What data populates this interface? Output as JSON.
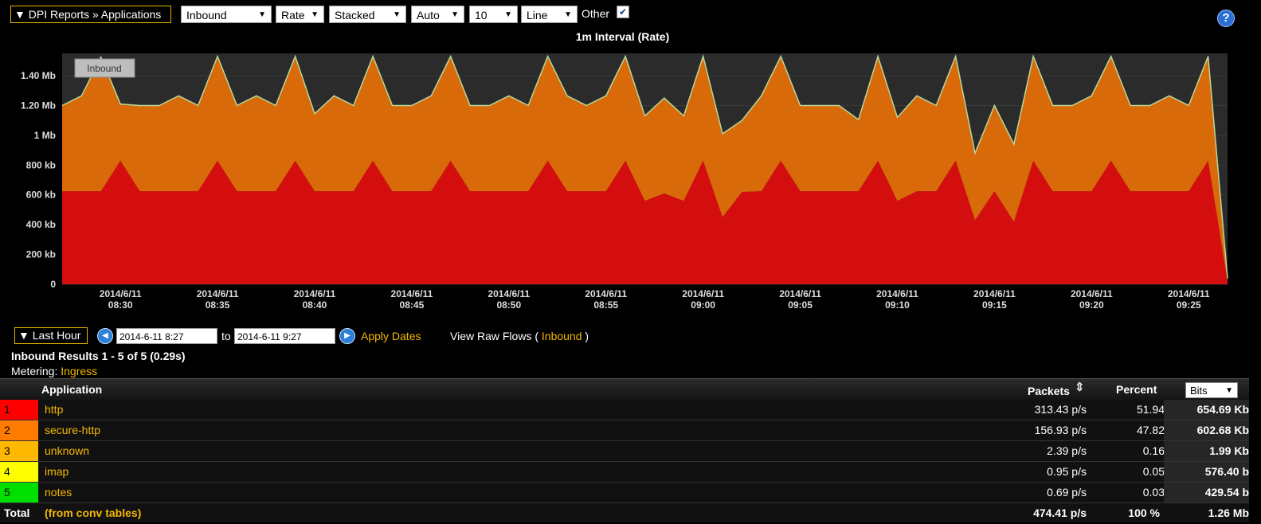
{
  "toolbar": {
    "breadcrumb": "▼ DPI Reports » Applications",
    "selects": [
      "Inbound",
      "Rate",
      "Stacked",
      "Auto",
      "10",
      "Line"
    ],
    "other_label": "Other",
    "other_checked": true,
    "help_label": "?"
  },
  "chart_title": "1m Interval (Rate)",
  "chart_data": {
    "type": "area",
    "stacked": true,
    "y_unit": "b",
    "ylim": [
      0,
      1550000
    ],
    "yticks": [
      0,
      200000,
      400000,
      600000,
      800000,
      1000000,
      1200000,
      1400000
    ],
    "ytick_labels": [
      "0",
      "200 kb",
      "400 kb",
      "600 kb",
      "800 kb",
      "1 Mb",
      "1.20 Mb",
      "1.40 Mb"
    ],
    "xlim": [
      "2014-06-11 08:27",
      "2014-06-11 09:27"
    ],
    "x_tick_labels": [
      [
        "2014/6/11",
        "08:30"
      ],
      [
        "2014/6/11",
        "08:35"
      ],
      [
        "2014/6/11",
        "08:40"
      ],
      [
        "2014/6/11",
        "08:45"
      ],
      [
        "2014/6/11",
        "08:50"
      ],
      [
        "2014/6/11",
        "08:55"
      ],
      [
        "2014/6/11",
        "09:00"
      ],
      [
        "2014/6/11",
        "09:05"
      ],
      [
        "2014/6/11",
        "09:10"
      ],
      [
        "2014/6/11",
        "09:15"
      ],
      [
        "2014/6/11",
        "09:20"
      ],
      [
        "2014/6/11",
        "09:25"
      ]
    ],
    "x": [
      "08:27",
      "08:28",
      "08:29",
      "08:30",
      "08:31",
      "08:32",
      "08:33",
      "08:34",
      "08:35",
      "08:36",
      "08:37",
      "08:38",
      "08:39",
      "08:40",
      "08:41",
      "08:42",
      "08:43",
      "08:44",
      "08:45",
      "08:46",
      "08:47",
      "08:48",
      "08:49",
      "08:50",
      "08:51",
      "08:52",
      "08:53",
      "08:54",
      "08:55",
      "08:56",
      "08:57",
      "08:58",
      "08:59",
      "09:00",
      "09:01",
      "09:02",
      "09:03",
      "09:04",
      "09:05",
      "09:06",
      "09:07",
      "09:08",
      "09:09",
      "09:10",
      "09:11",
      "09:12",
      "09:13",
      "09:14",
      "09:15",
      "09:16",
      "09:17",
      "09:18",
      "09:19",
      "09:20",
      "09:21",
      "09:22",
      "09:23",
      "09:24",
      "09:25",
      "09:26",
      "09:27"
    ],
    "series": [
      {
        "name": "Inbound",
        "color": "#d40e0e",
        "values": [
          625000,
          625000,
          625000,
          830000,
          625000,
          625000,
          625000,
          625000,
          830000,
          625000,
          625000,
          625000,
          830000,
          625000,
          625000,
          625000,
          830000,
          625000,
          625000,
          625000,
          830000,
          625000,
          625000,
          625000,
          625000,
          830000,
          625000,
          625000,
          625000,
          830000,
          560000,
          610000,
          560000,
          830000,
          450000,
          620000,
          625000,
          830000,
          625000,
          625000,
          625000,
          625000,
          830000,
          560000,
          625000,
          625000,
          830000,
          430000,
          625000,
          420000,
          830000,
          625000,
          625000,
          625000,
          830000,
          625000,
          625000,
          625000,
          625000,
          830000,
          20000
        ]
      },
      {
        "name": "secure-http",
        "color": "#d86a0a",
        "values": [
          575000,
          640000,
          900000,
          380000,
          575000,
          575000,
          640000,
          575000,
          700000,
          575000,
          640000,
          575000,
          700000,
          520000,
          640000,
          575000,
          700000,
          575000,
          575000,
          640000,
          700000,
          575000,
          575000,
          640000,
          575000,
          700000,
          640000,
          575000,
          640000,
          700000,
          570000,
          640000,
          570000,
          700000,
          560000,
          480000,
          640000,
          700000,
          575000,
          575000,
          575000,
          480000,
          700000,
          560000,
          640000,
          575000,
          700000,
          450000,
          575000,
          520000,
          700000,
          575000,
          575000,
          640000,
          700000,
          575000,
          575000,
          640000,
          575000,
          700000,
          20000
        ]
      }
    ],
    "annotation": "Inbound"
  },
  "datebar": {
    "range_label": "▼ Last Hour",
    "from": "2014-6-11 8:27",
    "to_label": "to",
    "to": "2014-6-11 9:27",
    "apply": "Apply Dates",
    "raw_prefix": "View Raw Flows (",
    "raw_link": "Inbound",
    "raw_suffix": ")"
  },
  "results": "Inbound Results 1 - 5 of 5 (0.29s)",
  "metering": {
    "label": "Metering:",
    "value": "Ingress"
  },
  "table": {
    "headers": {
      "application": "Application",
      "packets": "Packets",
      "percent": "Percent",
      "bits": "Bits"
    },
    "rows": [
      {
        "rank": "1",
        "color": "#ff0000",
        "app": "http",
        "packets": "313.43 p/s",
        "percent": "51.94",
        "bits": "654.69 Kb"
      },
      {
        "rank": "2",
        "color": "#ff7a00",
        "app": "secure-http",
        "packets": "156.93 p/s",
        "percent": "47.82",
        "bits": "602.68 Kb"
      },
      {
        "rank": "3",
        "color": "#ffb800",
        "app": "unknown",
        "packets": "2.39 p/s",
        "percent": "0.16",
        "bits": "1.99 Kb"
      },
      {
        "rank": "4",
        "color": "#ffff00",
        "app": "imap",
        "packets": "0.95 p/s",
        "percent": "0.05",
        "bits": "576.40 b"
      },
      {
        "rank": "5",
        "color": "#00e000",
        "app": "notes",
        "packets": "0.69 p/s",
        "percent": "0.03",
        "bits": "429.54 b"
      }
    ],
    "total": {
      "label": "Total",
      "note": "(from conv tables)",
      "packets": "474.41 p/s",
      "percent": "100 %",
      "bits": "1.26 Mb"
    }
  }
}
